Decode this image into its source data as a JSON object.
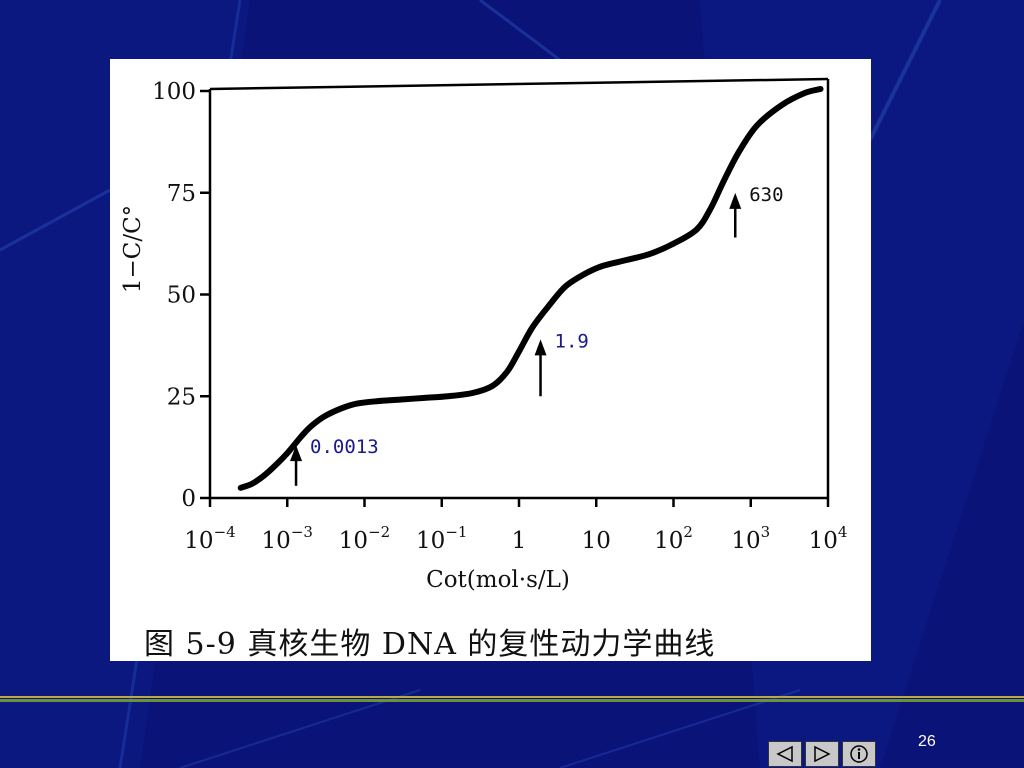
{
  "slide": {
    "caption": "图 5-9   真核生物 DNA 的复性动力学曲线",
    "page_number": "26"
  },
  "nav": {
    "prev_icon": "triangle-left-icon",
    "next_icon": "triangle-right-icon",
    "info_icon": "info-icon"
  },
  "colors": {
    "background": "#0a1478",
    "curve": "#000000",
    "annotation_blue": "#1a1a8c"
  },
  "chart_data": {
    "type": "line",
    "title": "",
    "xlabel": "Cot(mol·s/L)",
    "ylabel": "1−C/C°",
    "x_scale": "log",
    "xlim": [
      0.0001,
      10000
    ],
    "ylim": [
      0,
      100
    ],
    "y_ticks": [
      0,
      25,
      50,
      75,
      100
    ],
    "x_tick_labels": [
      {
        "base": "10",
        "exp": "−4",
        "value": 0.0001
      },
      {
        "base": "10",
        "exp": "−3",
        "value": 0.001
      },
      {
        "base": "10",
        "exp": "−2",
        "value": 0.01
      },
      {
        "base": "10",
        "exp": "−1",
        "value": 0.1
      },
      {
        "base": "1",
        "exp": "",
        "value": 1
      },
      {
        "base": "10",
        "exp": "",
        "value": 10
      },
      {
        "base": "10",
        "exp": "2",
        "value": 100
      },
      {
        "base": "10",
        "exp": "3",
        "value": 1000
      },
      {
        "base": "10",
        "exp": "4",
        "value": 10000
      }
    ],
    "grid": false,
    "legend": "none",
    "series": [
      {
        "points": [
          [
            0.00025,
            2.5
          ],
          [
            0.00035,
            3.5
          ],
          [
            0.0005,
            5.5
          ],
          [
            0.0007,
            8
          ],
          [
            0.001,
            11
          ],
          [
            0.0015,
            15
          ],
          [
            0.002,
            17.5
          ],
          [
            0.003,
            20
          ],
          [
            0.005,
            22
          ],
          [
            0.008,
            23.2
          ],
          [
            0.015,
            23.8
          ],
          [
            0.03,
            24.2
          ],
          [
            0.06,
            24.6
          ],
          [
            0.12,
            25
          ],
          [
            0.25,
            25.8
          ],
          [
            0.45,
            27.5
          ],
          [
            0.7,
            31
          ],
          [
            1,
            36
          ],
          [
            1.5,
            42
          ],
          [
            2.5,
            47.5
          ],
          [
            4,
            52
          ],
          [
            7,
            55
          ],
          [
            12,
            57
          ],
          [
            25,
            58.5
          ],
          [
            50,
            60
          ],
          [
            100,
            62.5
          ],
          [
            200,
            66
          ],
          [
            300,
            71
          ],
          [
            450,
            78
          ],
          [
            700,
            85
          ],
          [
            1200,
            91.5
          ],
          [
            2500,
            96.5
          ],
          [
            5000,
            99.5
          ],
          [
            8000,
            100.5
          ]
        ]
      }
    ],
    "annotations": [
      {
        "label": "0.0013",
        "x": 0.0013,
        "arrow_from_y": 3,
        "arrow_to_y": 12
      },
      {
        "label": "1.9",
        "x": 1.9,
        "arrow_from_y": 25,
        "arrow_to_y": 38
      },
      {
        "label": "630",
        "x": 630,
        "arrow_from_y": 64,
        "arrow_to_y": 74
      }
    ]
  }
}
